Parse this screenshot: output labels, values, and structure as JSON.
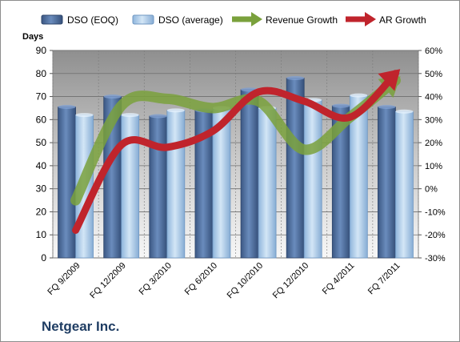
{
  "chart_data": {
    "type": "bar",
    "title": "",
    "company_label": "Netgear Inc.",
    "ylabel": "Days",
    "y2label": "",
    "categories": [
      "FQ 9/2009",
      "FQ 12/2009",
      "FQ 3/2010",
      "FQ 6/2010",
      "FQ 10/2010",
      "FQ 12/2010",
      "FQ 4/2011",
      "FQ 7/2011"
    ],
    "ylim": [
      0,
      90
    ],
    "yticks": [
      "0",
      "10",
      "20",
      "30",
      "40",
      "50",
      "60",
      "70",
      "80",
      "90"
    ],
    "y2lim": [
      -30,
      60
    ],
    "y2ticks": [
      "-30%",
      "-20%",
      "-10%",
      "0%",
      "10%",
      "20%",
      "30%",
      "40%",
      "50%",
      "60%"
    ],
    "grid": true,
    "legend_position": "top",
    "bar_series": [
      {
        "name": "DSO (EOQ)",
        "color": "#4f6f9f",
        "values": [
          65.5,
          70,
          61.5,
          64,
          73,
          78,
          66,
          65.5
        ]
      },
      {
        "name": "DSO (average)",
        "color": "#a9c8e6",
        "values": [
          62,
          62,
          64,
          65,
          65,
          68.5,
          70.5,
          63.5
        ]
      }
    ],
    "line_series": [
      {
        "name": "Revenue Growth",
        "axis": "secondary",
        "color": "#7aa13c",
        "values": [
          -5,
          36,
          39,
          35,
          38,
          17,
          31,
          47
        ]
      },
      {
        "name": "AR Growth",
        "axis": "secondary",
        "color": "#c0242c",
        "values": [
          -18,
          19,
          18,
          25,
          42,
          38,
          31,
          50
        ]
      }
    ]
  }
}
